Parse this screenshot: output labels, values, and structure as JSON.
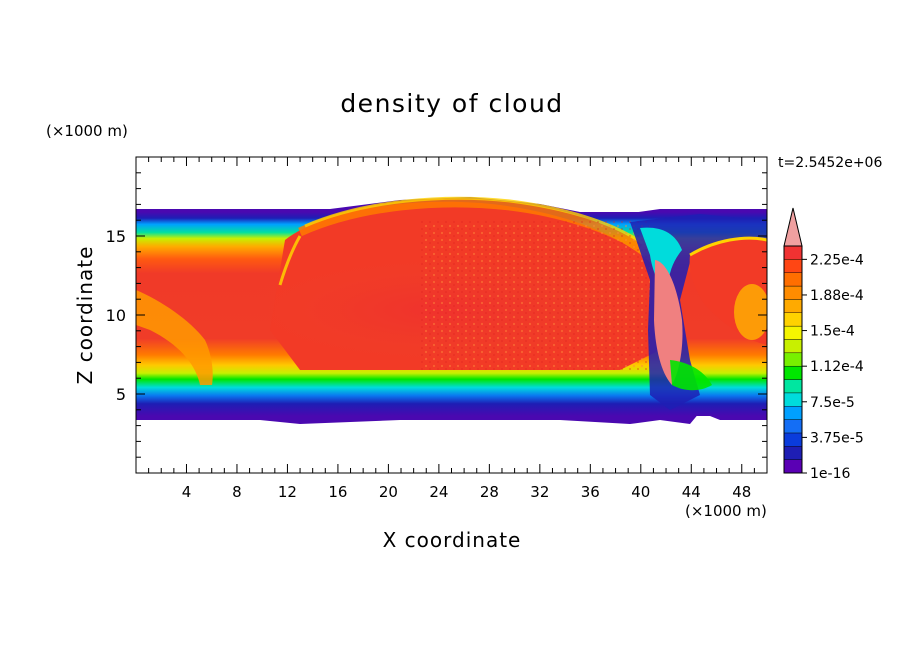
{
  "chart_data": {
    "type": "heatmap",
    "title": "density of cloud",
    "xlabel": "X coordinate",
    "ylabel": "Z coordinate",
    "x_unit": "(×1000 m)",
    "y_unit": "(×1000 m)",
    "time_label": "t=2.5452e+06",
    "xlim": [
      0,
      50
    ],
    "ylim": [
      0,
      20
    ],
    "x_ticks": [
      "4",
      "8",
      "12",
      "16",
      "20",
      "24",
      "28",
      "32",
      "36",
      "40",
      "44",
      "48"
    ],
    "y_ticks": [
      "5",
      "10",
      "15"
    ],
    "colorbar": {
      "labels": [
        "1e-16",
        "3.75e-5",
        "7.5e-5",
        "1.12e-4",
        "1.5e-4",
        "1.88e-4",
        "2.25e-4"
      ],
      "colors": [
        "#5a00b4",
        "#1e1eb4",
        "#0a3cdc",
        "#146ef5",
        "#00a0ff",
        "#00dcdc",
        "#00e6a0",
        "#00e600",
        "#78f000",
        "#c8f000",
        "#f5f500",
        "#ffd200",
        "#ffaa00",
        "#ff8c00",
        "#ff6e00",
        "#ff4614",
        "#f03232",
        "#f0a0a0"
      ]
    },
    "cloud_layer": {
      "base_km": 3.5,
      "top_km": 16.8,
      "peak_density": "2.25e-4"
    }
  }
}
